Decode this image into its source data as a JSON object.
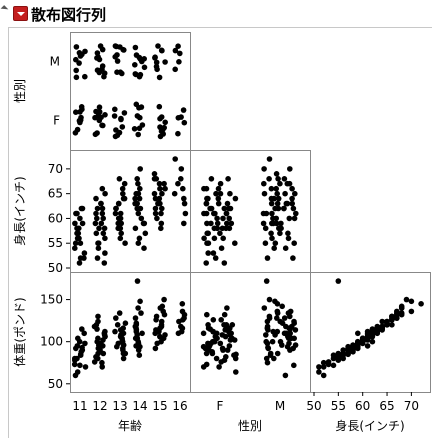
{
  "window": {
    "title": "散布図行列"
  },
  "icons": {
    "collapse": "disclosure-triangle-icon",
    "menu": "red-hotspot-menu-icon"
  },
  "colors": {
    "points": "#000000",
    "frame": "#888888",
    "grid": "#c8c8c8",
    "menu_red": "#c41e1e"
  },
  "chart_data": {
    "type": "scatter",
    "variables": [
      {
        "name": "年齢",
        "kind": "ordinal",
        "categories": [
          11,
          12,
          13,
          14,
          15,
          16
        ],
        "ticks": [
          "11",
          "12",
          "13",
          "14",
          "15",
          "16"
        ]
      },
      {
        "name": "性別",
        "kind": "nominal",
        "categories": [
          "F",
          "M"
        ],
        "ticks": [
          "F",
          "M"
        ]
      },
      {
        "name": "身長(インチ)",
        "kind": "continuous",
        "range": [
          50,
          73
        ],
        "ticks": [
          "50",
          "55",
          "60",
          "65",
          "70"
        ]
      },
      {
        "name": "体重(ポンド)",
        "kind": "continuous",
        "range": [
          45,
          178
        ],
        "ticks": [
          "50",
          "100",
          "150"
        ]
      }
    ],
    "row_variables": [
      "性別",
      "身長(インチ)",
      "体重(ポンド)"
    ],
    "column_variables": [
      "年齢",
      "性別",
      "身長(インチ)"
    ],
    "grid": false,
    "jitter": true,
    "records": [
      [
        11,
        "F",
        51,
        64
      ],
      [
        11,
        "F",
        52,
        70
      ],
      [
        11,
        "F",
        53,
        73
      ],
      [
        11,
        "F",
        55,
        78
      ],
      [
        11,
        "F",
        56,
        80
      ],
      [
        11,
        "F",
        57,
        85
      ],
      [
        11,
        "F",
        58,
        88
      ],
      [
        11,
        "F",
        59,
        92
      ],
      [
        11,
        "F",
        61,
        95
      ],
      [
        11,
        "F",
        62,
        100
      ],
      [
        11,
        "M",
        52,
        60
      ],
      [
        11,
        "M",
        54,
        72
      ],
      [
        11,
        "M",
        55,
        80
      ],
      [
        11,
        "M",
        56,
        84
      ],
      [
        11,
        "M",
        57,
        90
      ],
      [
        11,
        "M",
        58,
        93
      ],
      [
        11,
        "M",
        59,
        98
      ],
      [
        11,
        "M",
        60,
        104
      ],
      [
        11,
        "M",
        61,
        110
      ],
      [
        11,
        "M",
        62,
        115
      ],
      [
        12,
        "F",
        51,
        70
      ],
      [
        12,
        "F",
        53,
        76
      ],
      [
        12,
        "F",
        55,
        82
      ],
      [
        12,
        "F",
        56,
        86
      ],
      [
        12,
        "F",
        57,
        90
      ],
      [
        12,
        "F",
        58,
        95
      ],
      [
        12,
        "F",
        59,
        98
      ],
      [
        12,
        "F",
        60,
        102
      ],
      [
        12,
        "F",
        61,
        106
      ],
      [
        12,
        "F",
        62,
        110
      ],
      [
        12,
        "F",
        63,
        115
      ],
      [
        12,
        "F",
        65,
        120
      ],
      [
        12,
        "M",
        52,
        75
      ],
      [
        12,
        "M",
        54,
        80
      ],
      [
        12,
        "M",
        55,
        86
      ],
      [
        12,
        "M",
        57,
        92
      ],
      [
        12,
        "M",
        58,
        96
      ],
      [
        12,
        "M",
        59,
        100
      ],
      [
        12,
        "M",
        60,
        104
      ],
      [
        12,
        "M",
        61,
        108
      ],
      [
        12,
        "M",
        62,
        112
      ],
      [
        12,
        "M",
        63,
        118
      ],
      [
        12,
        "M",
        64,
        124
      ],
      [
        12,
        "M",
        66,
        130
      ],
      [
        13,
        "F",
        55,
        80
      ],
      [
        13,
        "F",
        57,
        86
      ],
      [
        13,
        "F",
        58,
        90
      ],
      [
        13,
        "F",
        59,
        94
      ],
      [
        13,
        "F",
        60,
        98
      ],
      [
        13,
        "F",
        61,
        102
      ],
      [
        13,
        "F",
        62,
        106
      ],
      [
        13,
        "F",
        63,
        110
      ],
      [
        13,
        "F",
        64,
        114
      ],
      [
        13,
        "F",
        66,
        120
      ],
      [
        13,
        "M",
        56,
        86
      ],
      [
        13,
        "M",
        58,
        92
      ],
      [
        13,
        "M",
        59,
        96
      ],
      [
        13,
        "M",
        60,
        100
      ],
      [
        13,
        "M",
        61,
        104
      ],
      [
        13,
        "M",
        62,
        108
      ],
      [
        13,
        "M",
        63,
        112
      ],
      [
        13,
        "M",
        64,
        116
      ],
      [
        13,
        "M",
        65,
        122
      ],
      [
        13,
        "M",
        67,
        128
      ],
      [
        13,
        "M",
        68,
        134
      ],
      [
        14,
        "F",
        54,
        84
      ],
      [
        14,
        "F",
        56,
        90
      ],
      [
        14,
        "F",
        58,
        95
      ],
      [
        14,
        "F",
        59,
        98
      ],
      [
        14,
        "F",
        61,
        104
      ],
      [
        14,
        "F",
        62,
        108
      ],
      [
        14,
        "F",
        63,
        112
      ],
      [
        14,
        "F",
        64,
        116
      ],
      [
        14,
        "F",
        65,
        120
      ],
      [
        14,
        "M",
        55,
        172
      ],
      [
        14,
        "M",
        57,
        94
      ],
      [
        14,
        "M",
        59,
        100
      ],
      [
        14,
        "M",
        60,
        104
      ],
      [
        14,
        "M",
        62,
        110
      ],
      [
        14,
        "M",
        63,
        114
      ],
      [
        14,
        "M",
        64,
        118
      ],
      [
        14,
        "M",
        65,
        122
      ],
      [
        14,
        "M",
        66,
        128
      ],
      [
        14,
        "M",
        67,
        134
      ],
      [
        14,
        "M",
        68,
        140
      ],
      [
        14,
        "M",
        70,
        148
      ],
      [
        15,
        "F",
        58,
        92
      ],
      [
        15,
        "F",
        60,
        100
      ],
      [
        15,
        "F",
        61,
        104
      ],
      [
        15,
        "F",
        62,
        108
      ],
      [
        15,
        "F",
        63,
        112
      ],
      [
        15,
        "F",
        64,
        116
      ],
      [
        15,
        "F",
        65,
        120
      ],
      [
        15,
        "F",
        66,
        126
      ],
      [
        15,
        "F",
        67,
        132
      ],
      [
        15,
        "F",
        68,
        140
      ],
      [
        15,
        "M",
        59,
        98
      ],
      [
        15,
        "M",
        61,
        106
      ],
      [
        15,
        "M",
        62,
        110
      ],
      [
        15,
        "M",
        63,
        114
      ],
      [
        15,
        "M",
        64,
        118
      ],
      [
        15,
        "M",
        65,
        124
      ],
      [
        15,
        "M",
        66,
        130
      ],
      [
        15,
        "M",
        67,
        136
      ],
      [
        15,
        "M",
        68,
        142
      ],
      [
        15,
        "M",
        69,
        150
      ],
      [
        16,
        "F",
        59,
        110
      ],
      [
        16,
        "F",
        61,
        112
      ],
      [
        16,
        "F",
        64,
        118
      ],
      [
        16,
        "F",
        66,
        126
      ],
      [
        16,
        "F",
        68,
        132
      ],
      [
        16,
        "M",
        63,
        116
      ],
      [
        16,
        "M",
        65,
        124
      ],
      [
        16,
        "M",
        67,
        128
      ],
      [
        16,
        "M",
        70,
        136
      ],
      [
        16,
        "M",
        72,
        145
      ]
    ]
  }
}
